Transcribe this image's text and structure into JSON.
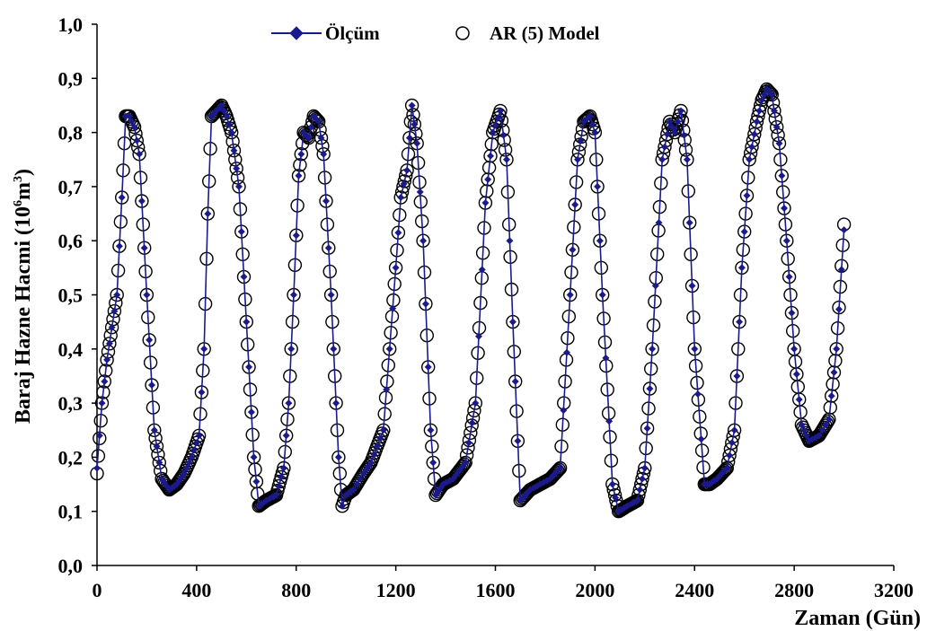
{
  "chart_data": {
    "type": "line",
    "title": "",
    "xlabel": "Zaman (Gün)",
    "ylabel": "Baraj Hazne Hacmi (10",
    "ylabel_exp1": "6",
    "ylabel_mid": "m",
    "ylabel_exp2": "3",
    "ylabel_end": ")",
    "xlim": [
      0,
      3200
    ],
    "ylim": [
      0.0,
      1.0
    ],
    "x_ticks": [
      0,
      400,
      800,
      1200,
      1600,
      2000,
      2400,
      2800,
      3200
    ],
    "x_tick_labels": [
      "0",
      "400",
      "800",
      "1200",
      "1600",
      "2000",
      "2400",
      "2800",
      "3200"
    ],
    "y_ticks": [
      0.0,
      0.1,
      0.2,
      0.3,
      0.4,
      0.5,
      0.6,
      0.7,
      0.8,
      0.9,
      1.0
    ],
    "y_tick_labels": [
      "0,0",
      "0,1",
      "0,2",
      "0,3",
      "0,4",
      "0,5",
      "0,6",
      "0,7",
      "0,8",
      "0,9",
      "1,0"
    ],
    "grid": false,
    "legend_position": "top",
    "series": [
      {
        "name": "Ölçüm",
        "color": "#1a1a8c",
        "marker": "diamond",
        "x": [
          0,
          20,
          40,
          60,
          80,
          100,
          115,
          130,
          150,
          170,
          200,
          230,
          260,
          290,
          320,
          350,
          380,
          410,
          430,
          445,
          460,
          480,
          500,
          520,
          540,
          570,
          600,
          630,
          650,
          680,
          720,
          750,
          770,
          790,
          810,
          830,
          850,
          870,
          890,
          910,
          940,
          970,
          985,
          1000,
          1030,
          1070,
          1100,
          1150,
          1200,
          1220,
          1245,
          1265,
          1285,
          1310,
          1340,
          1360,
          1390,
          1430,
          1480,
          1520,
          1560,
          1590,
          1620,
          1645,
          1670,
          1700,
          1720,
          1740,
          1780,
          1820,
          1860,
          1900,
          1930,
          1955,
          1980,
          2000,
          2030,
          2070,
          2095,
          2130,
          2170,
          2200,
          2230,
          2270,
          2300,
          2320,
          2345,
          2370,
          2400,
          2440,
          2460,
          2490,
          2530,
          2560,
          2590,
          2620,
          2650,
          2670,
          2690,
          2710,
          2740,
          2770,
          2800,
          2830,
          2860,
          2900,
          2940,
          2970,
          3000
        ],
        "y": [
          0.18,
          0.3,
          0.38,
          0.44,
          0.5,
          0.68,
          0.83,
          0.83,
          0.81,
          0.76,
          0.5,
          0.25,
          0.16,
          0.14,
          0.15,
          0.17,
          0.2,
          0.24,
          0.4,
          0.65,
          0.83,
          0.84,
          0.85,
          0.83,
          0.8,
          0.7,
          0.45,
          0.2,
          0.11,
          0.12,
          0.13,
          0.18,
          0.3,
          0.5,
          0.72,
          0.8,
          0.79,
          0.83,
          0.82,
          0.76,
          0.5,
          0.2,
          0.11,
          0.13,
          0.14,
          0.17,
          0.19,
          0.25,
          0.55,
          0.68,
          0.73,
          0.85,
          0.78,
          0.6,
          0.25,
          0.13,
          0.15,
          0.16,
          0.19,
          0.3,
          0.67,
          0.8,
          0.84,
          0.75,
          0.45,
          0.12,
          0.13,
          0.14,
          0.15,
          0.16,
          0.18,
          0.5,
          0.75,
          0.82,
          0.83,
          0.8,
          0.5,
          0.15,
          0.1,
          0.11,
          0.12,
          0.18,
          0.4,
          0.75,
          0.82,
          0.8,
          0.84,
          0.75,
          0.4,
          0.15,
          0.15,
          0.16,
          0.18,
          0.25,
          0.55,
          0.75,
          0.82,
          0.86,
          0.88,
          0.87,
          0.78,
          0.6,
          0.4,
          0.26,
          0.23,
          0.24,
          0.27,
          0.4,
          0.62
        ]
      },
      {
        "name": "AR (5) Model",
        "color": "#000000",
        "marker": "circle-open",
        "x": [
          0,
          20,
          40,
          60,
          80,
          100,
          115,
          130,
          150,
          170,
          200,
          230,
          260,
          290,
          320,
          350,
          380,
          410,
          430,
          445,
          460,
          480,
          500,
          520,
          540,
          570,
          600,
          630,
          650,
          680,
          720,
          750,
          770,
          790,
          810,
          830,
          850,
          870,
          890,
          910,
          940,
          970,
          985,
          1000,
          1030,
          1070,
          1100,
          1150,
          1200,
          1220,
          1245,
          1265,
          1285,
          1310,
          1340,
          1360,
          1390,
          1430,
          1480,
          1520,
          1560,
          1590,
          1620,
          1645,
          1670,
          1700,
          1720,
          1740,
          1780,
          1820,
          1860,
          1900,
          1930,
          1955,
          1980,
          2000,
          2030,
          2070,
          2095,
          2130,
          2170,
          2200,
          2230,
          2270,
          2300,
          2320,
          2345,
          2370,
          2400,
          2440,
          2460,
          2490,
          2530,
          2560,
          2590,
          2620,
          2650,
          2670,
          2690,
          2710,
          2740,
          2770,
          2800,
          2830,
          2860,
          2900,
          2940,
          2970,
          3000
        ],
        "y": [
          0.17,
          0.3,
          0.38,
          0.44,
          0.5,
          0.68,
          0.83,
          0.83,
          0.81,
          0.76,
          0.5,
          0.25,
          0.16,
          0.14,
          0.15,
          0.17,
          0.2,
          0.24,
          0.4,
          0.65,
          0.83,
          0.84,
          0.85,
          0.83,
          0.8,
          0.7,
          0.45,
          0.2,
          0.11,
          0.12,
          0.13,
          0.18,
          0.3,
          0.5,
          0.72,
          0.8,
          0.79,
          0.83,
          0.82,
          0.76,
          0.5,
          0.2,
          0.11,
          0.13,
          0.14,
          0.17,
          0.19,
          0.25,
          0.55,
          0.68,
          0.73,
          0.85,
          0.78,
          0.6,
          0.25,
          0.13,
          0.15,
          0.16,
          0.19,
          0.3,
          0.67,
          0.8,
          0.84,
          0.75,
          0.45,
          0.12,
          0.13,
          0.14,
          0.15,
          0.16,
          0.18,
          0.5,
          0.75,
          0.82,
          0.83,
          0.8,
          0.5,
          0.15,
          0.1,
          0.11,
          0.12,
          0.18,
          0.4,
          0.75,
          0.82,
          0.8,
          0.84,
          0.75,
          0.4,
          0.15,
          0.15,
          0.16,
          0.18,
          0.25,
          0.55,
          0.75,
          0.82,
          0.86,
          0.88,
          0.87,
          0.78,
          0.6,
          0.4,
          0.26,
          0.23,
          0.24,
          0.27,
          0.4,
          0.63
        ]
      }
    ]
  }
}
